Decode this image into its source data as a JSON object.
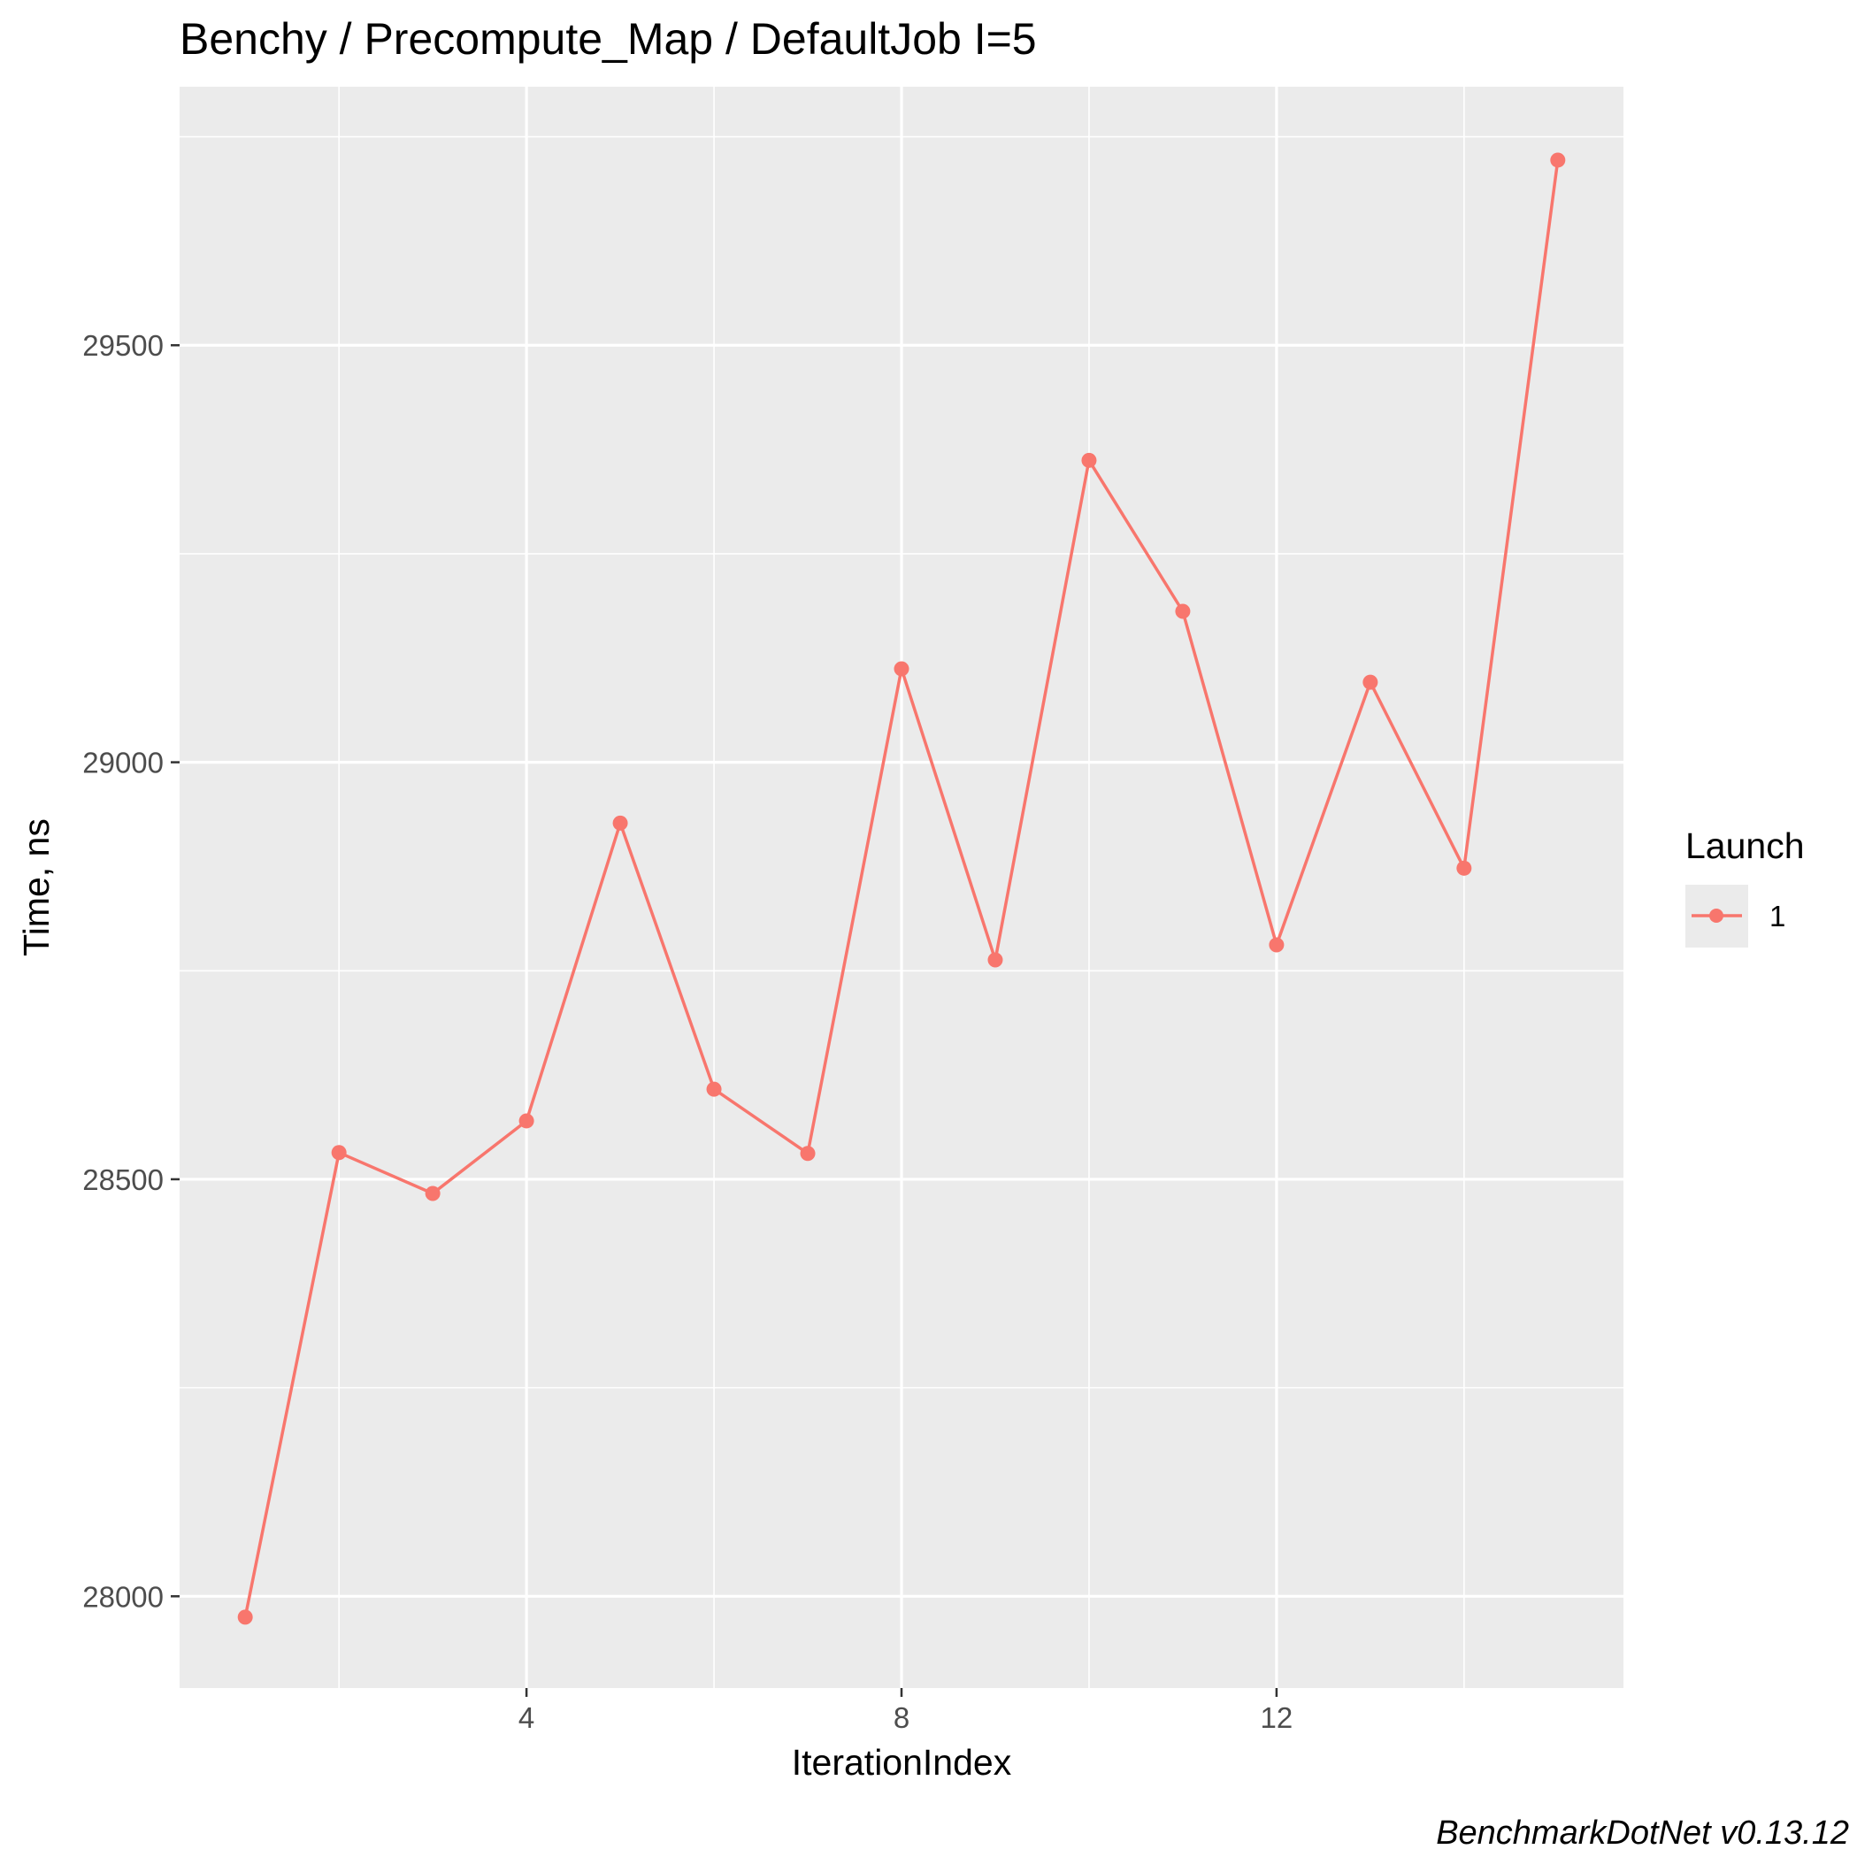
{
  "chart_data": {
    "type": "line",
    "title": "Benchy / Precompute_Map / DefaultJob I=5",
    "xlabel": "IterationIndex",
    "ylabel": "Time, ns",
    "caption": "BenchmarkDotNet v0.13.12",
    "xlim": [
      0.3,
      15.7
    ],
    "ylim": [
      27890,
      29810
    ],
    "x_ticks": [
      4,
      8,
      12
    ],
    "y_ticks": [
      28000,
      28500,
      29000,
      29500
    ],
    "grid": true,
    "legend": {
      "title": "Launch",
      "position": "right",
      "entries": [
        "1"
      ]
    },
    "series": [
      {
        "name": "1",
        "color": "#F8766D",
        "x": [
          1,
          2,
          3,
          4,
          5,
          6,
          7,
          8,
          9,
          10,
          11,
          12,
          13,
          14,
          15
        ],
        "y": [
          27975,
          28532,
          28483,
          28570,
          28927,
          28608,
          28531,
          29112,
          28763,
          29362,
          29181,
          28781,
          29096,
          28873,
          29722
        ]
      }
    ]
  },
  "colors": {
    "panel_background": "#EBEBEB",
    "grid_line": "#FFFFFF",
    "series": "#F8766D"
  }
}
